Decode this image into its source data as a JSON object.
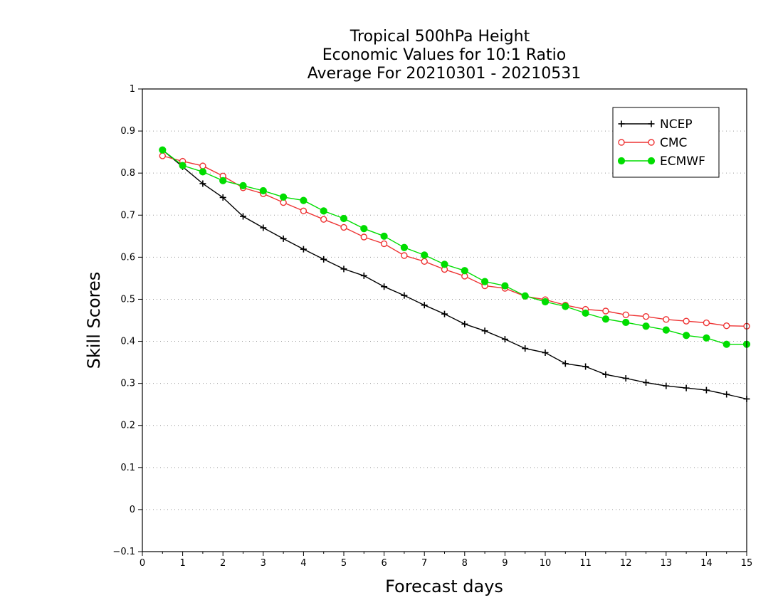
{
  "chart_data": {
    "type": "line",
    "title_lines": [
      "Tropical 500hPa Height",
      "Economic Values for 10:1 Ratio",
      "Average For 20210301 - 20210531"
    ],
    "xlabel": "Forecast days",
    "ylabel": "Skill Scores",
    "xlim": [
      0,
      15
    ],
    "ylim": [
      -0.1,
      1
    ],
    "xticks": [
      0,
      1,
      2,
      3,
      4,
      5,
      6,
      7,
      8,
      9,
      10,
      11,
      12,
      13,
      14,
      15
    ],
    "yticks": [
      -0.1,
      0,
      0.1,
      0.2,
      0.3,
      0.4,
      0.5,
      0.6,
      0.7,
      0.8,
      0.9,
      1
    ],
    "ytick_labels": [
      "−0.1",
      "0",
      "0.1",
      "0.2",
      "0.3",
      "0.4",
      "0.5",
      "0.6",
      "0.7",
      "0.8",
      "0.9",
      "1"
    ],
    "grid": "horizontal dotted",
    "legend_position": "top-right",
    "x": [
      0.5,
      1,
      1.5,
      2,
      2.5,
      3,
      3.5,
      4,
      4.5,
      5,
      5.5,
      6,
      6.5,
      7,
      7.5,
      8,
      8.5,
      9,
      9.5,
      10,
      10.5,
      11,
      11.5,
      12,
      12.5,
      13,
      13.5,
      14,
      14.5,
      15
    ],
    "series": [
      {
        "name": "NCEP",
        "color": "#000000",
        "marker": "plus",
        "values": [
          0.855,
          0.815,
          0.775,
          0.742,
          0.697,
          0.67,
          0.644,
          0.619,
          0.595,
          0.572,
          0.556,
          0.53,
          0.509,
          0.486,
          0.465,
          0.441,
          0.425,
          0.405,
          0.383,
          0.373,
          0.347,
          0.34,
          0.321,
          0.312,
          0.302,
          0.294,
          0.289,
          0.284,
          0.274,
          0.263
        ]
      },
      {
        "name": "CMC",
        "color": "#ee3333",
        "marker": "open-circle",
        "values": [
          0.841,
          0.828,
          0.817,
          0.793,
          0.765,
          0.751,
          0.73,
          0.71,
          0.69,
          0.671,
          0.648,
          0.632,
          0.604,
          0.59,
          0.571,
          0.555,
          0.532,
          0.526,
          0.507,
          0.499,
          0.486,
          0.476,
          0.472,
          0.463,
          0.459,
          0.452,
          0.448,
          0.444,
          0.437,
          0.436
        ]
      },
      {
        "name": "ECMWF",
        "color": "#00dd00",
        "marker": "filled-circle",
        "values": [
          0.855,
          0.818,
          0.803,
          0.782,
          0.77,
          0.758,
          0.743,
          0.735,
          0.71,
          0.692,
          0.668,
          0.65,
          0.623,
          0.605,
          0.583,
          0.568,
          0.542,
          0.532,
          0.508,
          0.494,
          0.483,
          0.467,
          0.453,
          0.445,
          0.436,
          0.427,
          0.414,
          0.408,
          0.393,
          0.393
        ]
      }
    ]
  }
}
